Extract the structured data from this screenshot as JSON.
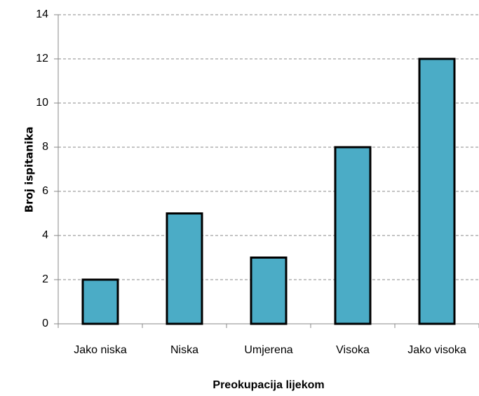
{
  "chart_data": {
    "type": "bar",
    "categories": [
      "Jako niska",
      "Niska",
      "Umjerena",
      "Visoka",
      "Jako visoka"
    ],
    "values": [
      2,
      5,
      3,
      8,
      12
    ],
    "color": "#4bacc6",
    "xlabel": "Preokupacija lijekom",
    "ylabel": "Broj ispitanika",
    "ylim": [
      0,
      14
    ],
    "yticks": [
      0,
      2,
      4,
      6,
      8,
      10,
      12,
      14
    ],
    "grid": true
  }
}
